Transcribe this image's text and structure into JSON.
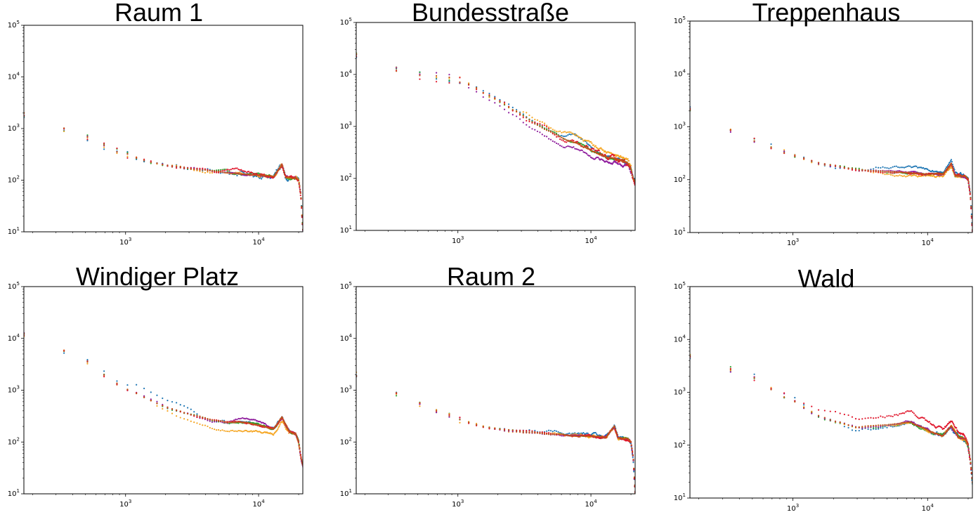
{
  "chart_data": [
    {
      "type": "scatter",
      "title": "Raum 1",
      "xscale": "log",
      "yscale": "log",
      "xlim": [
        172,
        21500
      ],
      "ylim": [
        10,
        100000
      ],
      "xticks": [
        {
          "base": "10",
          "exp": "3",
          "value": 1000
        },
        {
          "base": "10",
          "exp": "4",
          "value": 10000
        }
      ],
      "yticks": [
        {
          "base": "10",
          "exp": "1",
          "value": 10
        },
        {
          "base": "10",
          "exp": "2",
          "value": 100
        },
        {
          "base": "10",
          "exp": "3",
          "value": 1000
        },
        {
          "base": "10",
          "exp": "4",
          "value": 10000
        },
        {
          "base": "10",
          "exp": "5",
          "value": 100000
        }
      ],
      "grid": false,
      "series_colors": [
        "#1f77b4",
        "#2ca02c",
        "#f5a623",
        "#8e1b9c",
        "#e0182d",
        "#c0521a"
      ],
      "anchors": [
        [
          172,
          1900
        ],
        [
          344,
          1000
        ],
        [
          516,
          650
        ],
        [
          689,
          470
        ],
        [
          861,
          370
        ],
        [
          1033,
          305
        ],
        [
          1206,
          265
        ],
        [
          1378,
          240
        ],
        [
          1550,
          220
        ],
        [
          2000,
          195
        ],
        [
          3000,
          165
        ],
        [
          4500,
          148
        ],
        [
          7000,
          135
        ],
        [
          10000,
          125
        ],
        [
          13000,
          118
        ],
        [
          15000,
          200
        ],
        [
          16000,
          115
        ],
        [
          19000,
          110
        ],
        [
          20000,
          100
        ],
        [
          20800,
          50
        ],
        [
          21200,
          20
        ],
        [
          21500,
          11
        ]
      ],
      "variation": [
        0.22,
        0.12,
        0.1,
        0.08,
        0.12,
        0.05
      ],
      "series_bumps": [
        {
          "series": 4,
          "x": [
            5000,
            9000
          ],
          "factor": 1.18
        }
      ]
    },
    {
      "type": "scatter",
      "title": "Bundesstraße",
      "xscale": "log",
      "yscale": "log",
      "xlim": [
        172,
        21500
      ],
      "ylim": [
        10,
        100000
      ],
      "xticks": [
        {
          "base": "10",
          "exp": "3",
          "value": 1000
        },
        {
          "base": "10",
          "exp": "4",
          "value": 10000
        }
      ],
      "yticks": [
        {
          "base": "10",
          "exp": "1",
          "value": 10
        },
        {
          "base": "10",
          "exp": "2",
          "value": 100
        },
        {
          "base": "10",
          "exp": "3",
          "value": 1000
        },
        {
          "base": "10",
          "exp": "4",
          "value": 10000
        },
        {
          "base": "10",
          "exp": "5",
          "value": 100000
        }
      ],
      "grid": false,
      "series_colors": [
        "#1f77b4",
        "#2ca02c",
        "#f5a623",
        "#8e1b9c",
        "#e0182d",
        "#c0521a"
      ],
      "anchors": [
        [
          172,
          25000
        ],
        [
          344,
          12000
        ],
        [
          516,
          10000
        ],
        [
          689,
          9500
        ],
        [
          861,
          8500
        ],
        [
          1033,
          7500
        ],
        [
          1206,
          6500
        ],
        [
          1378,
          5500
        ],
        [
          1550,
          4500
        ],
        [
          2000,
          3200
        ],
        [
          3000,
          1700
        ],
        [
          4500,
          900
        ],
        [
          6000,
          600
        ],
        [
          8000,
          480
        ],
        [
          10000,
          350
        ],
        [
          13000,
          260
        ],
        [
          15000,
          240
        ],
        [
          17000,
          220
        ],
        [
          19000,
          190
        ],
        [
          20000,
          150
        ],
        [
          20800,
          100
        ],
        [
          21500,
          85
        ]
      ],
      "variation": [
        0.14,
        0.1,
        0.16,
        0.14,
        0.24,
        0.06
      ],
      "series_bumps": [
        {
          "series": 2,
          "x": [
            3000,
            20000
          ],
          "factor": 1.35
        },
        {
          "series": 3,
          "x": [
            1000,
            20000
          ],
          "factor": 0.72
        },
        {
          "series": 0,
          "x": [
            6000,
            11000
          ],
          "factor": 1.3
        }
      ]
    },
    {
      "type": "scatter",
      "title": "Treppenhaus",
      "xscale": "log",
      "yscale": "log",
      "xlim": [
        172,
        21500
      ],
      "ylim": [
        10,
        100000
      ],
      "xticks": [
        {
          "base": "10",
          "exp": "3",
          "value": 1000
        },
        {
          "base": "10",
          "exp": "4",
          "value": 10000
        }
      ],
      "yticks": [
        {
          "base": "10",
          "exp": "1",
          "value": 10
        },
        {
          "base": "10",
          "exp": "2",
          "value": 100
        },
        {
          "base": "10",
          "exp": "3",
          "value": 1000
        },
        {
          "base": "10",
          "exp": "4",
          "value": 10000
        },
        {
          "base": "10",
          "exp": "5",
          "value": 100000
        }
      ],
      "grid": false,
      "series_colors": [
        "#1f77b4",
        "#2ca02c",
        "#f5a623",
        "#8e1b9c",
        "#e0182d",
        "#c0521a"
      ],
      "anchors": [
        [
          172,
          2200
        ],
        [
          344,
          850
        ],
        [
          516,
          550
        ],
        [
          689,
          420
        ],
        [
          861,
          330
        ],
        [
          1033,
          285
        ],
        [
          1206,
          250
        ],
        [
          1378,
          225
        ],
        [
          1550,
          205
        ],
        [
          2000,
          180
        ],
        [
          3000,
          155
        ],
        [
          4500,
          145
        ],
        [
          7000,
          135
        ],
        [
          10000,
          130
        ],
        [
          13000,
          125
        ],
        [
          15000,
          200
        ],
        [
          16000,
          120
        ],
        [
          19000,
          115
        ],
        [
          20000,
          100
        ],
        [
          20800,
          50
        ],
        [
          21200,
          20
        ],
        [
          21500,
          11
        ]
      ],
      "variation": [
        0.12,
        0.1,
        0.1,
        0.08,
        0.1,
        0.05
      ],
      "series_bumps": [
        {
          "series": 0,
          "x": [
            4000,
            20000
          ],
          "factor": 1.22
        },
        {
          "series": 2,
          "x": [
            3000,
            20000
          ],
          "factor": 0.88
        }
      ]
    },
    {
      "type": "scatter",
      "title": "Windiger Platz",
      "xscale": "log",
      "yscale": "log",
      "xlim": [
        172,
        21500
      ],
      "ylim": [
        10,
        100000
      ],
      "xticks": [
        {
          "base": "10",
          "exp": "3",
          "value": 1000
        },
        {
          "base": "10",
          "exp": "4",
          "value": 10000
        }
      ],
      "yticks": [
        {
          "base": "10",
          "exp": "1",
          "value": 10
        },
        {
          "base": "10",
          "exp": "2",
          "value": 100
        },
        {
          "base": "10",
          "exp": "3",
          "value": 1000
        },
        {
          "base": "10",
          "exp": "4",
          "value": 10000
        },
        {
          "base": "10",
          "exp": "5",
          "value": 100000
        }
      ],
      "grid": false,
      "series_colors": [
        "#1f77b4",
        "#2ca02c",
        "#f5a623",
        "#8e1b9c",
        "#e0182d",
        "#c0521a"
      ],
      "anchors": [
        [
          172,
          12000
        ],
        [
          344,
          5800
        ],
        [
          516,
          3500
        ],
        [
          689,
          1900
        ],
        [
          861,
          1300
        ],
        [
          1033,
          1050
        ],
        [
          1206,
          880
        ],
        [
          1378,
          740
        ],
        [
          1550,
          640
        ],
        [
          2000,
          480
        ],
        [
          3000,
          350
        ],
        [
          4500,
          260
        ],
        [
          6000,
          235
        ],
        [
          8000,
          240
        ],
        [
          10000,
          210
        ],
        [
          13000,
          180
        ],
        [
          15000,
          300
        ],
        [
          17000,
          160
        ],
        [
          19000,
          140
        ],
        [
          20000,
          100
        ],
        [
          20800,
          50
        ],
        [
          21500,
          35
        ]
      ],
      "variation": [
        0.12,
        0.08,
        0.1,
        0.08,
        0.08,
        0.05
      ],
      "series_bumps": [
        {
          "series": 0,
          "x": [
            689,
            3500
          ],
          "factor": 1.45
        },
        {
          "series": 2,
          "x": [
            1700,
            17000
          ],
          "factor": 0.68
        },
        {
          "series": 3,
          "x": [
            6000,
            12000
          ],
          "factor": 1.2
        }
      ]
    },
    {
      "type": "scatter",
      "title": "Raum 2",
      "xscale": "log",
      "yscale": "log",
      "xlim": [
        172,
        21500
      ],
      "ylim": [
        10,
        100000
      ],
      "xticks": [
        {
          "base": "10",
          "exp": "3",
          "value": 1000
        },
        {
          "base": "10",
          "exp": "4",
          "value": 10000
        }
      ],
      "yticks": [
        {
          "base": "10",
          "exp": "1",
          "value": 10
        },
        {
          "base": "10",
          "exp": "2",
          "value": 100
        },
        {
          "base": "10",
          "exp": "3",
          "value": 1000
        },
        {
          "base": "10",
          "exp": "4",
          "value": 10000
        },
        {
          "base": "10",
          "exp": "5",
          "value": 100000
        }
      ],
      "grid": false,
      "series_colors": [
        "#1f77b4",
        "#2ca02c",
        "#f5a623",
        "#8e1b9c",
        "#e0182d",
        "#c0521a"
      ],
      "anchors": [
        [
          172,
          2000
        ],
        [
          344,
          850
        ],
        [
          516,
          560
        ],
        [
          689,
          400
        ],
        [
          861,
          320
        ],
        [
          1033,
          270
        ],
        [
          1206,
          240
        ],
        [
          1378,
          215
        ],
        [
          1550,
          200
        ],
        [
          2000,
          180
        ],
        [
          3000,
          160
        ],
        [
          4500,
          145
        ],
        [
          7000,
          135
        ],
        [
          10000,
          130
        ],
        [
          13000,
          125
        ],
        [
          15000,
          200
        ],
        [
          16000,
          120
        ],
        [
          19000,
          115
        ],
        [
          20000,
          100
        ],
        [
          20800,
          50
        ],
        [
          21200,
          20
        ],
        [
          21500,
          11
        ]
      ],
      "variation": [
        0.14,
        0.1,
        0.12,
        0.08,
        0.1,
        0.05
      ],
      "series_bumps": [
        {
          "series": 0,
          "x": [
            2500,
            12000
          ],
          "factor": 1.1
        }
      ]
    },
    {
      "type": "scatter",
      "title": "Wald",
      "xscale": "log",
      "yscale": "log",
      "xlim": [
        172,
        21500
      ],
      "ylim": [
        10,
        100000
      ],
      "xticks": [
        {
          "base": "10",
          "exp": "3",
          "value": 1000
        },
        {
          "base": "10",
          "exp": "4",
          "value": 10000
        }
      ],
      "yticks": [
        {
          "base": "10",
          "exp": "1",
          "value": 10
        },
        {
          "base": "10",
          "exp": "2",
          "value": 100
        },
        {
          "base": "10",
          "exp": "3",
          "value": 1000
        },
        {
          "base": "10",
          "exp": "4",
          "value": 10000
        },
        {
          "base": "10",
          "exp": "5",
          "value": 100000
        }
      ],
      "grid": false,
      "series_colors": [
        "#1f77b4",
        "#2ca02c",
        "#f5a623",
        "#8e1b9c",
        "#e0182d",
        "#c0521a"
      ],
      "anchors": [
        [
          172,
          5000
        ],
        [
          344,
          2700
        ],
        [
          516,
          1800
        ],
        [
          689,
          1150
        ],
        [
          861,
          850
        ],
        [
          1033,
          650
        ],
        [
          1206,
          520
        ],
        [
          1378,
          420
        ],
        [
          1550,
          360
        ],
        [
          2000,
          290
        ],
        [
          3000,
          220
        ],
        [
          4500,
          230
        ],
        [
          6000,
          250
        ],
        [
          7500,
          280
        ],
        [
          9000,
          220
        ],
        [
          11000,
          170
        ],
        [
          13000,
          150
        ],
        [
          15000,
          230
        ],
        [
          17000,
          140
        ],
        [
          19000,
          130
        ],
        [
          20000,
          100
        ],
        [
          20800,
          50
        ],
        [
          21500,
          20
        ]
      ],
      "variation": [
        0.2,
        0.12,
        0.1,
        0.1,
        0.14,
        0.05
      ],
      "series_bumps": [
        {
          "series": 4,
          "x": [
            1200,
            20000
          ],
          "factor": 1.55
        },
        {
          "series": 0,
          "x": [
            1500,
            5000
          ],
          "factor": 0.88
        }
      ]
    }
  ]
}
